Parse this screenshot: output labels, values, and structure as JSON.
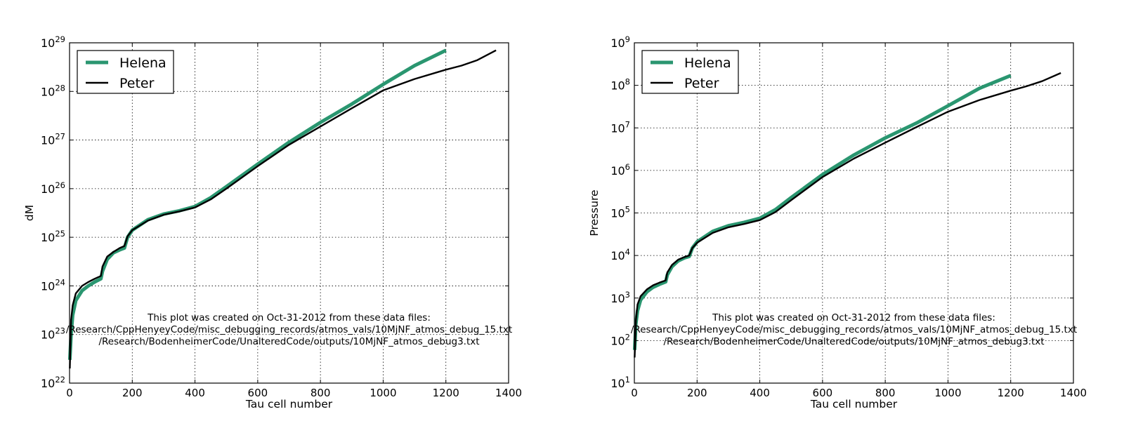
{
  "colors": {
    "helena": "#2a9670",
    "peter": "#000000",
    "grid": "#000000",
    "background": "#ffffff"
  },
  "chart_data": [
    {
      "type": "line",
      "title": "",
      "xlabel": "Tau cell number",
      "ylabel": "dM",
      "xlim": [
        0,
        1400
      ],
      "ylim": [
        1e+22,
        1e+29
      ],
      "yscale": "log",
      "x_ticks": [
        0,
        200,
        400,
        600,
        800,
        1000,
        1200,
        1400
      ],
      "y_tick_exponents": [
        22,
        23,
        24,
        25,
        26,
        27,
        28,
        29
      ],
      "grid": true,
      "legend": "top-left",
      "series": [
        {
          "name": "Helena",
          "color": "#2a9670",
          "x": [
            1,
            5,
            10,
            20,
            40,
            60,
            80,
            100,
            105,
            120,
            140,
            160,
            175,
            185,
            200,
            250,
            300,
            350,
            400,
            450,
            500,
            600,
            700,
            800,
            900,
            1000,
            1100,
            1200
          ],
          "y": [
            3e+22,
            1e+23,
            2.5e+23,
            5e+23,
            8e+23,
            1e+24,
            1.2e+24,
            1.4e+24,
            2e+24,
            3.5e+24,
            4.8e+24,
            5.5e+24,
            6e+24,
            1e+25,
            1.4e+25,
            2.3e+25,
            3e+25,
            3.5e+25,
            4.3e+25,
            6.5e+25,
            1.1e+26,
            3.2e+26,
            9e+26,
            2.3e+27,
            5.5e+27,
            1.4e+28,
            3.4e+28,
            7e+28
          ]
        },
        {
          "name": "Peter",
          "color": "#000000",
          "x": [
            1,
            5,
            10,
            20,
            40,
            60,
            80,
            100,
            105,
            120,
            140,
            160,
            175,
            185,
            200,
            250,
            300,
            350,
            400,
            450,
            500,
            600,
            700,
            800,
            900,
            1000,
            1100,
            1200,
            1250,
            1300,
            1360
          ],
          "y": [
            2e+22,
            2e+23,
            4e+23,
            7e+23,
            1e+24,
            1.2e+24,
            1.4e+24,
            1.6e+24,
            2.5e+24,
            4e+24,
            5e+24,
            6e+24,
            6.6e+24,
            1.05e+25,
            1.4e+25,
            2.2e+25,
            2.9e+25,
            3.4e+25,
            4.1e+25,
            6e+25,
            1e+26,
            2.9e+26,
            8e+26,
            1.9e+27,
            4.5e+27,
            1.05e+28,
            1.8e+28,
            2.8e+28,
            3.4e+28,
            4.4e+28,
            7e+28
          ]
        }
      ],
      "annotation": [
        "This plot was created on Oct-31-2012 from these data files:",
        "/Research/CppHenyeyCode/misc_debugging_records/atmos_vals/10MjNF_atmos_debug_15.txt",
        "/Research/BodenheimerCode/UnalteredCode/outputs/10MjNF_atmos_debug3.txt"
      ]
    },
    {
      "type": "line",
      "title": "",
      "xlabel": "Tau cell number",
      "ylabel": "Pressure",
      "xlim": [
        0,
        1400
      ],
      "ylim": [
        10,
        1000000000.0
      ],
      "yscale": "log",
      "x_ticks": [
        0,
        200,
        400,
        600,
        800,
        1000,
        1200,
        1400
      ],
      "y_tick_exponents": [
        1,
        2,
        3,
        4,
        5,
        6,
        7,
        8,
        9
      ],
      "grid": true,
      "legend": "top-left",
      "series": [
        {
          "name": "Helena",
          "color": "#2a9670",
          "x": [
            1,
            5,
            10,
            20,
            40,
            60,
            80,
            100,
            105,
            120,
            140,
            160,
            175,
            185,
            200,
            250,
            300,
            350,
            400,
            450,
            500,
            600,
            700,
            800,
            900,
            1000,
            1100,
            1200
          ],
          "y": [
            60,
            250,
            500,
            900,
            1400,
            1800,
            2100,
            2400,
            3500,
            5500,
            7500,
            8800,
            9500,
            15000,
            21000,
            37000,
            50000,
            60000,
            75000,
            120000,
            230000,
            800000,
            2300000,
            5800000,
            13000000,
            33000000,
            85000000,
            170000000
          ]
        },
        {
          "name": "Peter",
          "color": "#000000",
          "x": [
            1,
            5,
            10,
            20,
            40,
            60,
            80,
            100,
            105,
            120,
            140,
            160,
            175,
            185,
            200,
            250,
            300,
            350,
            400,
            450,
            500,
            600,
            700,
            800,
            900,
            1000,
            1100,
            1200,
            1250,
            1300,
            1360
          ],
          "y": [
            40,
            300,
            700,
            1100,
            1600,
            2000,
            2300,
            2600,
            4000,
            6000,
            8000,
            9200,
            10000,
            15000,
            20000,
            34000,
            46000,
            55000,
            68000,
            105000,
            200000,
            700000,
            1900000,
            4500000,
            10500000,
            24000000,
            45000000,
            75000000,
            95000000,
            125000000,
            195000000
          ]
        }
      ],
      "annotation": [
        "This plot was created on Oct-31-2012 from these data files:",
        "/Research/CppHenyeyCode/misc_debugging_records/atmos_vals/10MjNF_atmos_debug_15.txt",
        "/Research/BodenheimerCode/UnalteredCode/outputs/10MjNF_atmos_debug3.txt"
      ]
    }
  ]
}
